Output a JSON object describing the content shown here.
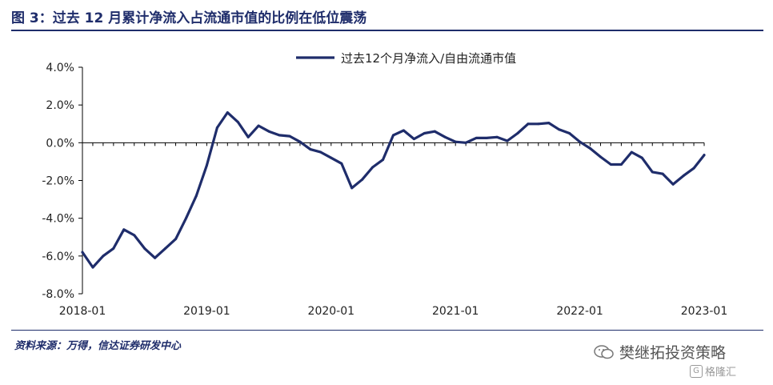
{
  "figure": {
    "title": "图 3：过去 12 月累计净流入占流通市值的比例在低位震荡",
    "source": "资料来源：万得，信达证券研发中心",
    "watermark": "樊继拓投资策略",
    "watermark2": "格隆汇"
  },
  "colors": {
    "line": "#1f2d6b",
    "text": "#1f2d6b"
  },
  "chart_data": {
    "type": "line",
    "ylim": [
      -8,
      4
    ],
    "ytick_values": [
      -8,
      -6,
      -4,
      -2,
      0,
      2,
      4
    ],
    "ytick_labels": [
      "-8.0%",
      "-6.0%",
      "-4.0%",
      "-2.0%",
      "0.0%",
      "2.0%",
      "4.0%"
    ],
    "xtick_labels": [
      "2018-01",
      "2019-01",
      "2020-01",
      "2021-01",
      "2022-01",
      "2023-01"
    ],
    "xtick_index": [
      0,
      12,
      24,
      36,
      48,
      60
    ],
    "grid": false,
    "legend": "top-right",
    "series": [
      {
        "name": "过去12个月净流入/自由流通市值",
        "x": [
          "2018-01",
          "2018-02",
          "2018-03",
          "2018-04",
          "2018-05",
          "2018-06",
          "2018-07",
          "2018-08",
          "2018-09",
          "2018-10",
          "2018-11",
          "2018-12",
          "2019-01",
          "2019-02",
          "2019-03",
          "2019-04",
          "2019-05",
          "2019-06",
          "2019-07",
          "2019-08",
          "2019-09",
          "2019-10",
          "2019-11",
          "2019-12",
          "2020-01",
          "2020-02",
          "2020-03",
          "2020-04",
          "2020-05",
          "2020-06",
          "2020-07",
          "2020-08",
          "2020-09",
          "2020-10",
          "2020-11",
          "2020-12",
          "2021-01",
          "2021-02",
          "2021-03",
          "2021-04",
          "2021-05",
          "2021-06",
          "2021-07",
          "2021-08",
          "2021-09",
          "2021-10",
          "2021-11",
          "2021-12",
          "2022-01",
          "2022-02",
          "2022-03",
          "2022-04",
          "2022-05",
          "2022-06",
          "2022-07",
          "2022-08",
          "2022-09",
          "2022-10",
          "2022-11",
          "2022-12",
          "2023-01"
        ],
        "values": [
          -5.8,
          -6.6,
          -6.0,
          -5.6,
          -4.6,
          -4.9,
          -5.6,
          -6.1,
          -5.6,
          -5.1,
          -4.0,
          -2.8,
          -1.2,
          0.8,
          1.6,
          1.1,
          0.3,
          0.9,
          0.6,
          0.4,
          0.35,
          0.05,
          -0.35,
          -0.5,
          -0.8,
          -1.1,
          -2.4,
          -1.95,
          -1.3,
          -0.9,
          0.4,
          0.65,
          0.2,
          0.5,
          0.6,
          0.3,
          0.05,
          0.0,
          0.25,
          0.25,
          0.3,
          0.1,
          0.5,
          1.0,
          1.0,
          1.05,
          0.7,
          0.5,
          0.05,
          -0.3,
          -0.75,
          -1.15,
          -1.15,
          -0.5,
          -0.8,
          -1.55,
          -1.65,
          -2.2,
          -1.75,
          -1.35,
          -0.65
        ]
      }
    ]
  }
}
